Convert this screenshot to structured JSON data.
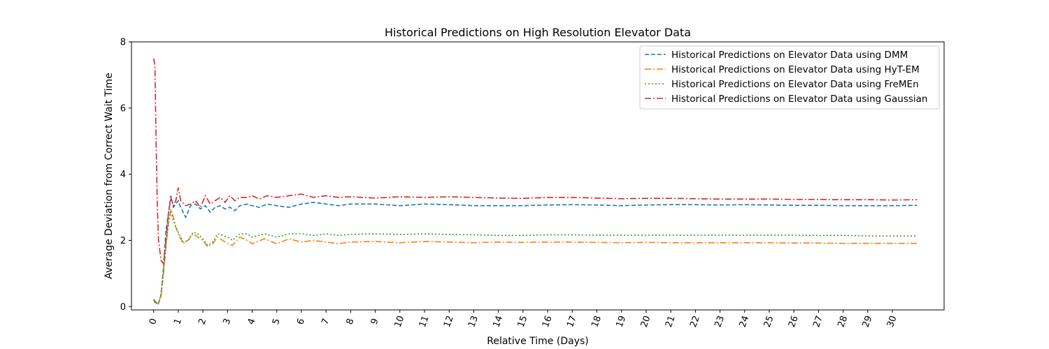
{
  "chart_data": {
    "type": "line",
    "title": "Historical Predictions on High Resolution Elevator Data",
    "xlabel": "Relative Time (Days)",
    "ylabel": "Average Deviation from Correct Wait Time",
    "xlim": [
      -0.9,
      32.1
    ],
    "ylim": [
      -0.1,
      8
    ],
    "xticks": [
      0,
      1,
      2,
      3,
      4,
      5,
      6,
      7,
      8,
      9,
      10,
      11,
      12,
      13,
      14,
      15,
      16,
      17,
      18,
      19,
      20,
      21,
      22,
      23,
      24,
      25,
      26,
      27,
      28,
      29,
      30
    ],
    "yticks": [
      0,
      2,
      4,
      6,
      8
    ],
    "grid": false,
    "legend_position": "top-right",
    "series": [
      {
        "name": "Historical Predictions on Elevator Data using DMM",
        "color": "#1f77b4",
        "dash": "dashed",
        "points": [
          [
            0,
            0.22
          ],
          [
            0.1,
            0.12
          ],
          [
            0.2,
            0.1
          ],
          [
            0.3,
            0.35
          ],
          [
            0.4,
            1.2
          ],
          [
            0.5,
            2.3
          ],
          [
            0.6,
            2.8
          ],
          [
            0.7,
            3.35
          ],
          [
            0.8,
            3.0
          ],
          [
            0.9,
            3.1
          ],
          [
            1.0,
            3.2
          ],
          [
            1.1,
            3.0
          ],
          [
            1.3,
            2.7
          ],
          [
            1.5,
            3.05
          ],
          [
            1.7,
            3.1
          ],
          [
            1.9,
            2.95
          ],
          [
            2.1,
            3.05
          ],
          [
            2.3,
            2.85
          ],
          [
            2.5,
            3.0
          ],
          [
            2.7,
            3.05
          ],
          [
            2.9,
            2.95
          ],
          [
            3.1,
            3.0
          ],
          [
            3.3,
            2.9
          ],
          [
            3.5,
            3.05
          ],
          [
            3.8,
            3.1
          ],
          [
            4.0,
            3.05
          ],
          [
            4.3,
            3.0
          ],
          [
            4.6,
            3.1
          ],
          [
            5.0,
            3.05
          ],
          [
            5.5,
            3.0
          ],
          [
            6.0,
            3.1
          ],
          [
            6.5,
            3.15
          ],
          [
            7.0,
            3.1
          ],
          [
            7.5,
            3.05
          ],
          [
            8,
            3.1
          ],
          [
            9,
            3.1
          ],
          [
            10,
            3.05
          ],
          [
            11,
            3.1
          ],
          [
            12,
            3.08
          ],
          [
            13,
            3.05
          ],
          [
            14,
            3.05
          ],
          [
            15,
            3.05
          ],
          [
            16,
            3.07
          ],
          [
            17,
            3.08
          ],
          [
            18,
            3.07
          ],
          [
            19,
            3.05
          ],
          [
            20,
            3.07
          ],
          [
            21,
            3.08
          ],
          [
            22,
            3.08
          ],
          [
            23,
            3.07
          ],
          [
            24,
            3.08
          ],
          [
            25,
            3.07
          ],
          [
            26,
            3.06
          ],
          [
            27,
            3.06
          ],
          [
            28,
            3.05
          ],
          [
            29,
            3.05
          ],
          [
            30,
            3.05
          ],
          [
            31,
            3.06
          ]
        ]
      },
      {
        "name": "Historical Predictions on Elevator Data using HyT-EM",
        "color": "#ff7f0e",
        "dash": "dashdot",
        "points": [
          [
            0,
            0.15
          ],
          [
            0.1,
            0.1
          ],
          [
            0.2,
            0.08
          ],
          [
            0.3,
            0.3
          ],
          [
            0.4,
            1.0
          ],
          [
            0.5,
            1.8
          ],
          [
            0.6,
            2.5
          ],
          [
            0.7,
            2.95
          ],
          [
            0.8,
            2.7
          ],
          [
            0.9,
            2.4
          ],
          [
            1.0,
            2.2
          ],
          [
            1.2,
            1.9
          ],
          [
            1.4,
            2.0
          ],
          [
            1.6,
            2.2
          ],
          [
            1.8,
            2.1
          ],
          [
            2.0,
            2.0
          ],
          [
            2.2,
            1.8
          ],
          [
            2.4,
            1.9
          ],
          [
            2.6,
            2.1
          ],
          [
            2.8,
            2.0
          ],
          [
            3.0,
            1.9
          ],
          [
            3.2,
            1.85
          ],
          [
            3.5,
            2.1
          ],
          [
            3.8,
            2.0
          ],
          [
            4.0,
            1.9
          ],
          [
            4.5,
            2.05
          ],
          [
            5.0,
            1.9
          ],
          [
            5.5,
            2.05
          ],
          [
            6.0,
            1.95
          ],
          [
            6.5,
            2.0
          ],
          [
            7.0,
            1.95
          ],
          [
            7.5,
            1.9
          ],
          [
            8,
            1.95
          ],
          [
            9,
            1.97
          ],
          [
            10,
            1.93
          ],
          [
            11,
            1.97
          ],
          [
            12,
            1.95
          ],
          [
            13,
            1.93
          ],
          [
            14,
            1.95
          ],
          [
            15,
            1.94
          ],
          [
            16,
            1.95
          ],
          [
            17,
            1.95
          ],
          [
            18,
            1.94
          ],
          [
            19,
            1.93
          ],
          [
            20,
            1.94
          ],
          [
            21,
            1.93
          ],
          [
            22,
            1.93
          ],
          [
            23,
            1.93
          ],
          [
            24,
            1.93
          ],
          [
            25,
            1.93
          ],
          [
            26,
            1.92
          ],
          [
            27,
            1.92
          ],
          [
            28,
            1.91
          ],
          [
            29,
            1.91
          ],
          [
            30,
            1.91
          ],
          [
            31,
            1.91
          ]
        ]
      },
      {
        "name": "Historical Predictions on Elevator Data using FreMEn",
        "color": "#2ca02c",
        "dash": "dotted",
        "points": [
          [
            0,
            0.2
          ],
          [
            0.1,
            0.12
          ],
          [
            0.2,
            0.1
          ],
          [
            0.3,
            0.4
          ],
          [
            0.4,
            1.1
          ],
          [
            0.5,
            1.9
          ],
          [
            0.6,
            2.5
          ],
          [
            0.7,
            2.85
          ],
          [
            0.8,
            2.6
          ],
          [
            0.9,
            2.4
          ],
          [
            1.0,
            2.25
          ],
          [
            1.2,
            1.95
          ],
          [
            1.4,
            2.0
          ],
          [
            1.6,
            2.25
          ],
          [
            1.8,
            2.2
          ],
          [
            2.0,
            2.05
          ],
          [
            2.2,
            1.85
          ],
          [
            2.4,
            1.95
          ],
          [
            2.6,
            2.2
          ],
          [
            2.8,
            2.15
          ],
          [
            3.0,
            2.1
          ],
          [
            3.2,
            2.0
          ],
          [
            3.5,
            2.2
          ],
          [
            3.8,
            2.2
          ],
          [
            4.0,
            2.1
          ],
          [
            4.5,
            2.2
          ],
          [
            5.0,
            2.1
          ],
          [
            5.5,
            2.2
          ],
          [
            6.0,
            2.2
          ],
          [
            6.5,
            2.15
          ],
          [
            7.0,
            2.2
          ],
          [
            7.5,
            2.15
          ],
          [
            8,
            2.18
          ],
          [
            9,
            2.2
          ],
          [
            10,
            2.18
          ],
          [
            11,
            2.2
          ],
          [
            12,
            2.18
          ],
          [
            13,
            2.17
          ],
          [
            14,
            2.15
          ],
          [
            15,
            2.15
          ],
          [
            16,
            2.17
          ],
          [
            17,
            2.17
          ],
          [
            18,
            2.16
          ],
          [
            19,
            2.16
          ],
          [
            20,
            2.16
          ],
          [
            21,
            2.16
          ],
          [
            22,
            2.16
          ],
          [
            23,
            2.16
          ],
          [
            24,
            2.16
          ],
          [
            25,
            2.16
          ],
          [
            26,
            2.16
          ],
          [
            27,
            2.15
          ],
          [
            28,
            2.15
          ],
          [
            29,
            2.14
          ],
          [
            30,
            2.13
          ],
          [
            31,
            2.14
          ]
        ]
      },
      {
        "name": "Historical Predictions on Elevator Data using Gaussian",
        "color": "#d62728",
        "dash": "dashdot",
        "points": [
          [
            0,
            7.5
          ],
          [
            0.05,
            7.3
          ],
          [
            0.1,
            5.0
          ],
          [
            0.15,
            3.0
          ],
          [
            0.2,
            2.0
          ],
          [
            0.3,
            1.4
          ],
          [
            0.4,
            1.3
          ],
          [
            0.5,
            2.0
          ],
          [
            0.6,
            2.8
          ],
          [
            0.7,
            3.3
          ],
          [
            0.8,
            3.05
          ],
          [
            0.9,
            3.2
          ],
          [
            1.0,
            3.6
          ],
          [
            1.1,
            3.2
          ],
          [
            1.3,
            3.05
          ],
          [
            1.5,
            3.1
          ],
          [
            1.7,
            3.2
          ],
          [
            1.9,
            3.0
          ],
          [
            2.1,
            3.35
          ],
          [
            2.3,
            3.1
          ],
          [
            2.5,
            3.2
          ],
          [
            2.7,
            3.3
          ],
          [
            2.9,
            3.15
          ],
          [
            3.1,
            3.35
          ],
          [
            3.3,
            3.2
          ],
          [
            3.5,
            3.3
          ],
          [
            3.8,
            3.3
          ],
          [
            4.0,
            3.35
          ],
          [
            4.3,
            3.25
          ],
          [
            4.6,
            3.35
          ],
          [
            5.0,
            3.3
          ],
          [
            5.5,
            3.35
          ],
          [
            6.0,
            3.4
          ],
          [
            6.5,
            3.3
          ],
          [
            7.0,
            3.35
          ],
          [
            7.5,
            3.3
          ],
          [
            8,
            3.32
          ],
          [
            9,
            3.28
          ],
          [
            10,
            3.32
          ],
          [
            11,
            3.3
          ],
          [
            12,
            3.32
          ],
          [
            13,
            3.3
          ],
          [
            14,
            3.28
          ],
          [
            15,
            3.27
          ],
          [
            16,
            3.3
          ],
          [
            17,
            3.3
          ],
          [
            18,
            3.28
          ],
          [
            19,
            3.26
          ],
          [
            20,
            3.27
          ],
          [
            21,
            3.27
          ],
          [
            22,
            3.26
          ],
          [
            23,
            3.25
          ],
          [
            24,
            3.25
          ],
          [
            25,
            3.25
          ],
          [
            26,
            3.24
          ],
          [
            27,
            3.24
          ],
          [
            28,
            3.23
          ],
          [
            29,
            3.23
          ],
          [
            30,
            3.22
          ],
          [
            31,
            3.23
          ]
        ]
      }
    ]
  }
}
